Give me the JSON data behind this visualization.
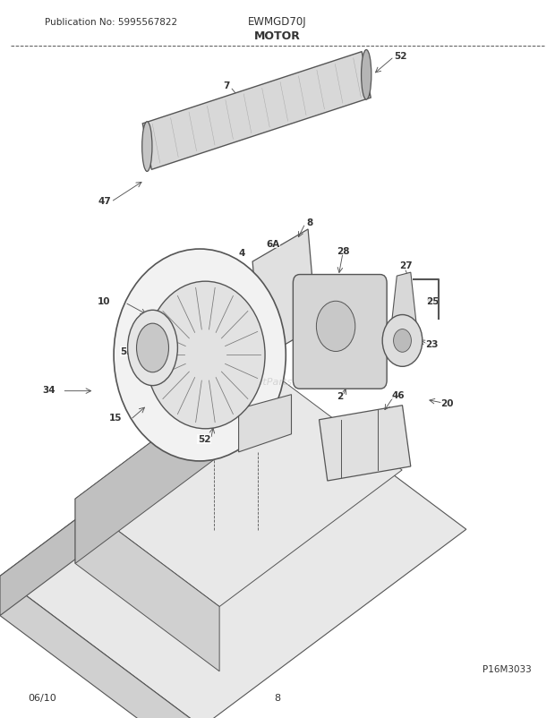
{
  "title": "MOTOR",
  "publication": "Publication No: 5995567822",
  "model": "EWMGD70J",
  "diagram_ref": "P16M3033",
  "date": "06/10",
  "page": "8",
  "bg_color": "#ffffff",
  "line_color": "#555555",
  "text_color": "#333333",
  "face_top": "#e8e8e8",
  "face_left": "#d0d0d0",
  "face_right": "#c0c0c0"
}
